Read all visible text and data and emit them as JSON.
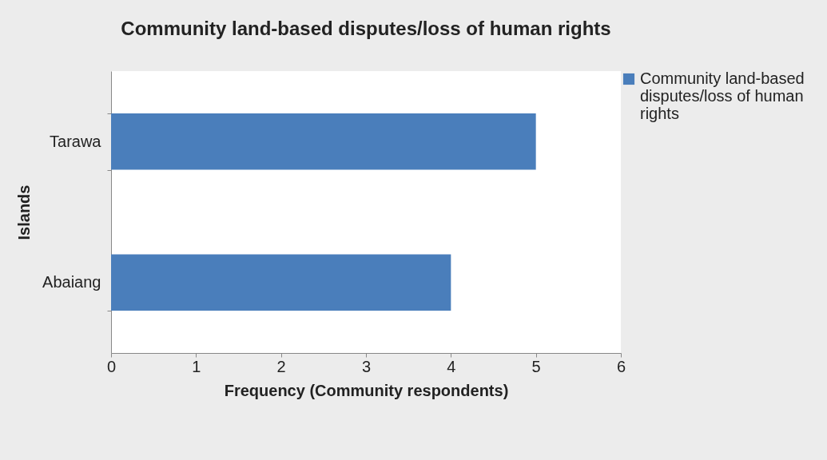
{
  "chart_data": {
    "type": "bar",
    "orientation": "horizontal",
    "title": "Community land-based disputes/loss of human rights",
    "xlabel": "Frequency (Community respondents)",
    "ylabel": "Islands",
    "categories": [
      "Tarawa",
      "Abaiang"
    ],
    "series": [
      {
        "name": "Community land-based disputes/loss of human rights",
        "color": "#4a7ebb",
        "values": [
          5,
          4
        ]
      }
    ],
    "xlim": [
      0,
      6
    ],
    "xticks": [
      0,
      1,
      2,
      3,
      4,
      5,
      6
    ],
    "grid": false,
    "legend": "right"
  }
}
